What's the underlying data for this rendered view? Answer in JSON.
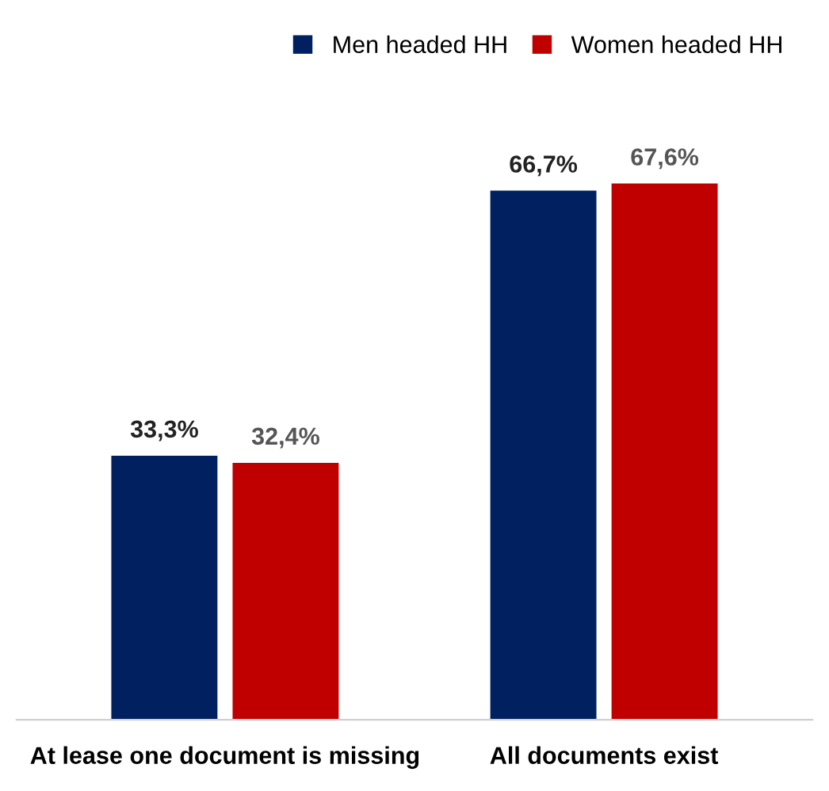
{
  "chart_data": {
    "type": "bar",
    "categories": [
      "At lease one document is missing",
      "All documents exist"
    ],
    "series": [
      {
        "name": "Men headed HH",
        "color": "#002060",
        "values": [
          33.3,
          66.7
        ],
        "value_labels": [
          "33,3%",
          "66,7%"
        ]
      },
      {
        "name": "Women headed HH",
        "color": "#c00000",
        "values": [
          32.4,
          67.6
        ],
        "value_labels": [
          "32,4%",
          "67,6%"
        ]
      }
    ],
    "legend": "top right",
    "grid": false
  }
}
